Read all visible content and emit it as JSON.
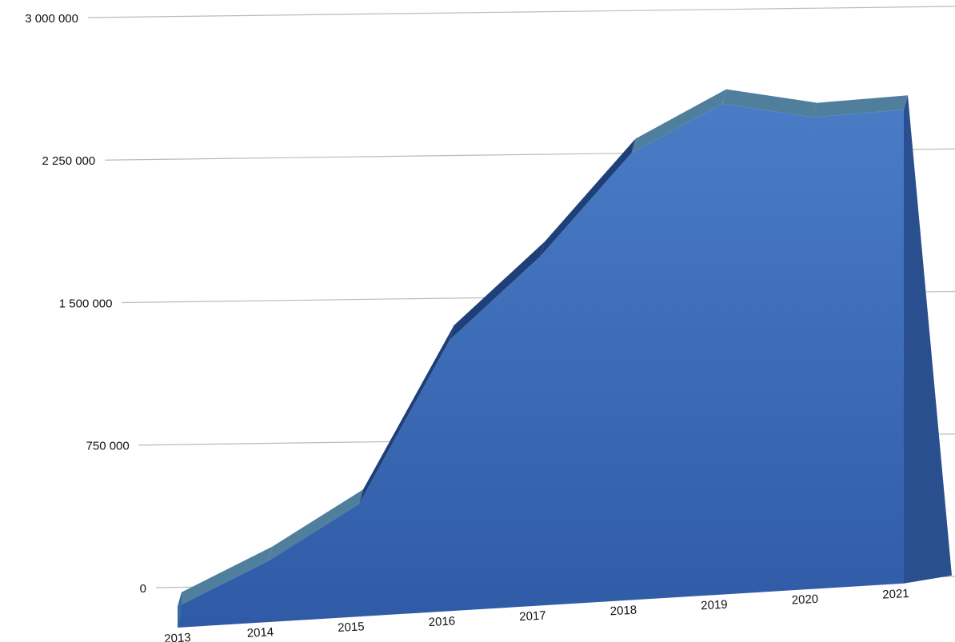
{
  "chart_data": {
    "type": "area3d",
    "categories": [
      "2013",
      "2014",
      "2015",
      "2016",
      "2017",
      "2018",
      "2019",
      "2020",
      "2021"
    ],
    "values": [
      110000,
      320000,
      590000,
      1420000,
      1830000,
      2340000,
      2570000,
      2470000,
      2480000
    ],
    "color": "#3a66b0",
    "ylim": [
      0,
      3000000
    ],
    "yticks": [
      0,
      {
        "value": 750000,
        "label": "750 000"
      },
      {
        "value": 1500000,
        "label": "1 500 000"
      },
      {
        "value": 2250000,
        "label": "2 250 000"
      },
      {
        "value": 3000000,
        "label": "3 000 000"
      }
    ],
    "grid": true
  }
}
